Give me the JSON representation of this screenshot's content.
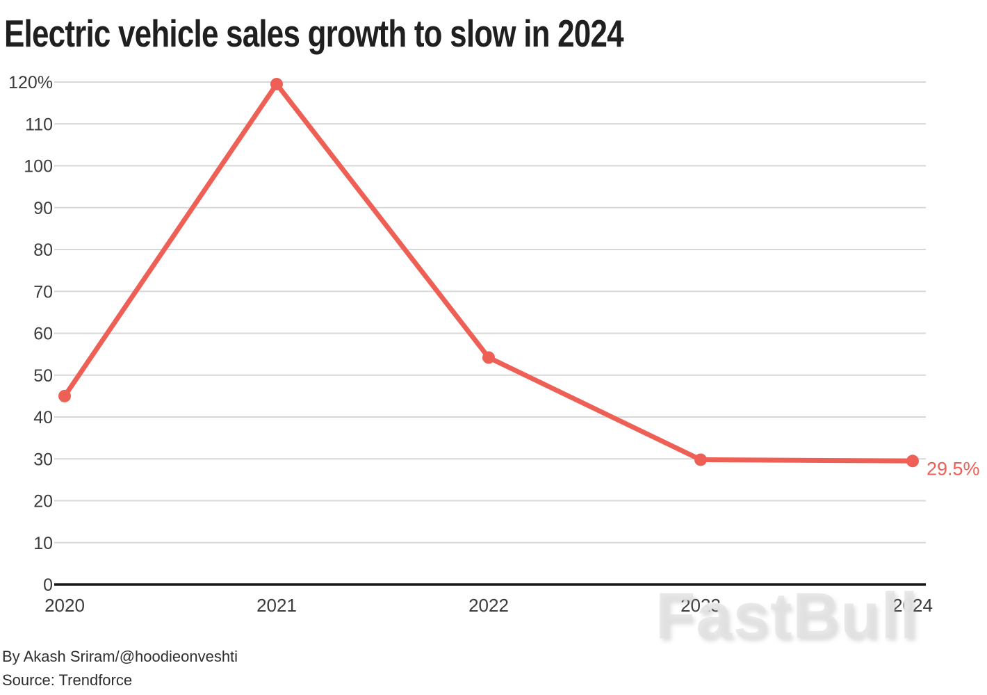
{
  "title": "Electric vehicle sales growth to slow in 2024",
  "byline": "By Akash Sriram/@hoodieonveshti",
  "source": "Source: Trendforce",
  "watermark": "FastBull",
  "chart_data": {
    "type": "line",
    "title": "Electric vehicle sales growth to slow in 2024",
    "x": [
      "2020",
      "2021",
      "2022",
      "2023",
      "2024"
    ],
    "values": [
      45,
      119.5,
      54.2,
      29.8,
      29.5
    ],
    "end_label": "29.5%",
    "xlabel": "",
    "ylabel": "",
    "ylim": [
      0,
      120
    ],
    "yticks": [
      0,
      10,
      20,
      30,
      40,
      50,
      60,
      70,
      80,
      90,
      100,
      110,
      120
    ],
    "ytick_labels": [
      "0",
      "10",
      "20",
      "30",
      "40",
      "50",
      "60",
      "70",
      "80",
      "90",
      "100",
      "110",
      "120%"
    ],
    "grid": true,
    "legend": "none",
    "line_color": "#ee6055",
    "grid_color": "#d7d7d7",
    "axis_color": "#161616",
    "tick_label_color": "#3c3c3c"
  }
}
